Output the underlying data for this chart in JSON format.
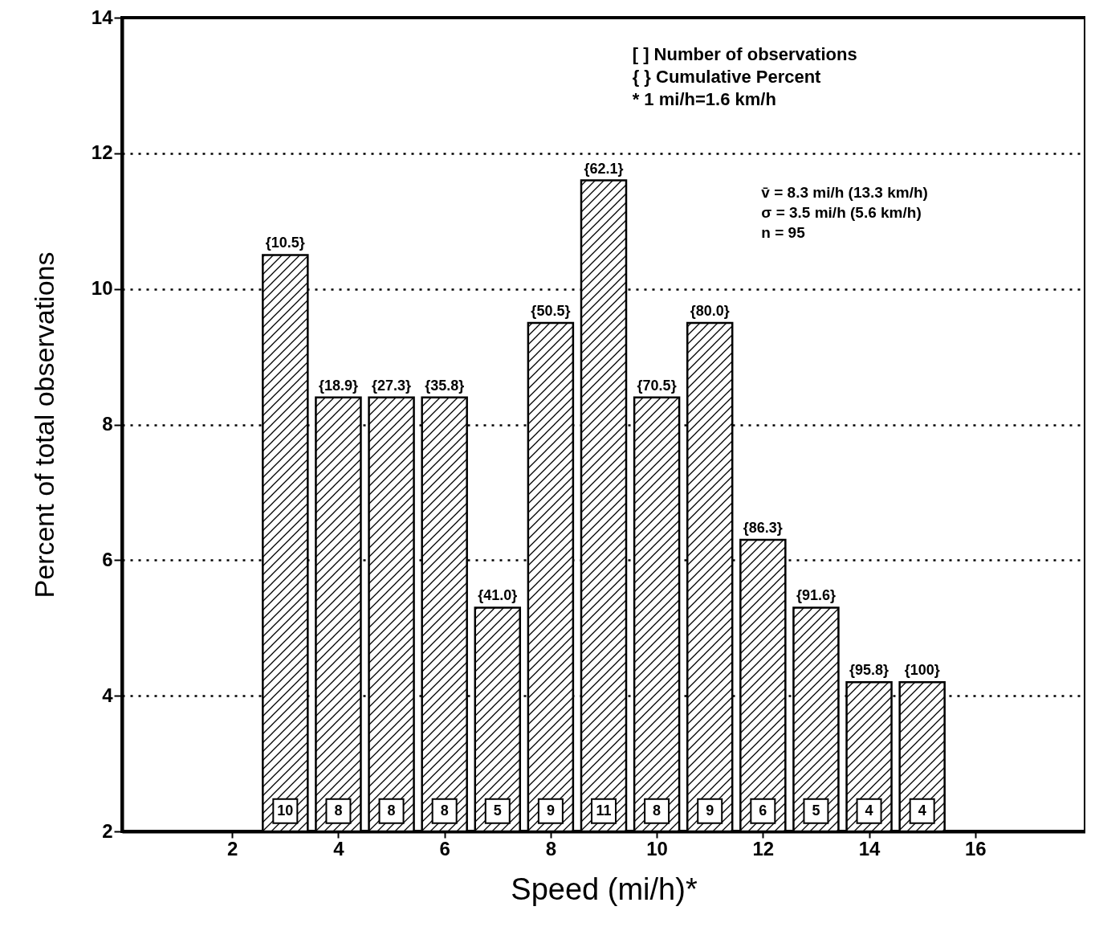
{
  "chart_data": {
    "type": "bar",
    "xlabel": "Speed (mi/h)*",
    "ylabel": "Percent of total observations",
    "x": [
      3,
      4,
      5,
      6,
      7,
      8,
      9,
      10,
      11,
      12,
      13,
      14,
      15
    ],
    "values": [
      10.5,
      8.4,
      8.4,
      8.4,
      5.3,
      9.5,
      11.6,
      8.4,
      9.5,
      6.3,
      5.3,
      4.2,
      4.2
    ],
    "color": "#000000",
    "xlim": [
      0,
      18
    ],
    "xticks": [
      2,
      4,
      6,
      8,
      10,
      12,
      14,
      16
    ],
    "ylim": [
      2,
      14
    ],
    "yticks": [
      2,
      4,
      6,
      8,
      10,
      12,
      14
    ],
    "grid": "y",
    "annotations": [
      {
        "text": "{10.5}",
        "x": 3,
        "y": 10.5
      },
      {
        "text": "{18.9}",
        "x": 4,
        "y": 8.4
      },
      {
        "text": "{27.3}",
        "x": 5,
        "y": 8.4
      },
      {
        "text": "{35.8}",
        "x": 6,
        "y": 8.4
      },
      {
        "text": "{41.0}",
        "x": 7,
        "y": 5.3
      },
      {
        "text": "{50.5}",
        "x": 8,
        "y": 9.5
      },
      {
        "text": "{62.1}",
        "x": 9,
        "y": 11.6
      },
      {
        "text": "{70.5}",
        "x": 10,
        "y": 8.4
      },
      {
        "text": "{80.0}",
        "x": 11,
        "y": 9.5
      },
      {
        "text": "{86.3}",
        "x": 12,
        "y": 6.3
      },
      {
        "text": "{91.6}",
        "x": 13,
        "y": 5.3
      },
      {
        "text": "{95.8}",
        "x": 14,
        "y": 4.2
      },
      {
        "text": "{100}",
        "x": 15,
        "y": 4.2
      },
      {
        "text": "10",
        "x": 3,
        "y": 2.3
      },
      {
        "text": "8",
        "x": 4,
        "y": 2.3
      },
      {
        "text": "8",
        "x": 5,
        "y": 2.3
      },
      {
        "text": "8",
        "x": 6,
        "y": 2.3
      },
      {
        "text": "5",
        "x": 7,
        "y": 2.3
      },
      {
        "text": "9",
        "x": 8,
        "y": 2.3
      },
      {
        "text": "11",
        "x": 9,
        "y": 2.3
      },
      {
        "text": "8",
        "x": 10,
        "y": 2.3
      },
      {
        "text": "9",
        "x": 11,
        "y": 2.3
      },
      {
        "text": "6",
        "x": 12,
        "y": 2.3
      },
      {
        "text": "5",
        "x": 13,
        "y": 2.3
      },
      {
        "text": "4",
        "x": 14,
        "y": 2.3
      },
      {
        "text": "4",
        "x": 15,
        "y": 2.3
      },
      "[ ] Number of observations",
      "{ } Cumulative Percent",
      "* 1 mi/h=1.6 km/h",
      "v̄ = 8.3 mi/h (13.3 km/h)",
      "σ = 3.5 mi/h (5.6 km/h)",
      "n = 95"
    ]
  }
}
